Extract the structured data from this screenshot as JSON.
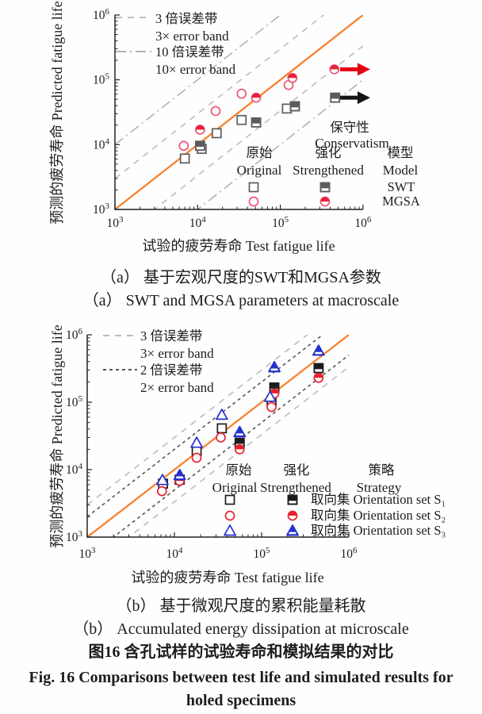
{
  "figure": {
    "caption_a_cn": "（a） 基于宏观尺度的SWT和MGSA参数",
    "caption_a_en": "（a） SWT and MGSA parameters at macroscale",
    "caption_b_cn": "（b） 基于微观尺度的累积能量耗散",
    "caption_b_en": "（b） Accumulated energy dissipation at microscale",
    "fig_caption_cn": "图16  含孔试样的试验寿命和模拟结果的对比",
    "fig_caption_en": "Fig. 16  Comparisons between test life and simulated results for holed specimens"
  },
  "chart_data": [
    {
      "id": "a",
      "type": "scatter",
      "scale": "log-log",
      "xlabel": "试验的疲劳寿命 Test fatigue life",
      "ylabel": "预测的疲劳寿命 Predicted fatigue life",
      "xlim": [
        1000,
        1000000
      ],
      "ylim": [
        1000,
        1000000
      ],
      "x_ticks": [
        "10^3",
        "10^4",
        "10^5",
        "10^6"
      ],
      "y_ticks": [
        "10^3",
        "10^4",
        "10^5",
        "10^6"
      ],
      "identity_line": {
        "color": "#f8812f"
      },
      "error_bands": [
        {
          "factor": 3,
          "color": "#bcbcbc",
          "dash": "8 7",
          "label_cn": "3 倍误差带",
          "label_en": "3× error band"
        },
        {
          "factor": 10,
          "color": "#b3b3b3",
          "dash": "13 5 2 5",
          "label_cn": "10 倍误差带",
          "label_en": "10× error band"
        }
      ],
      "legend": {
        "col_original_cn": "原始",
        "col_original_en": "Original",
        "col_strengthened_cn": "强化",
        "col_strengthened_en": "Strengthened",
        "col_group_cn": "模型",
        "col_group_en": "Model",
        "rows": [
          "SWT",
          "MGSA"
        ]
      },
      "annotation_cn": "保守性",
      "annotation_en": "Conservatism",
      "arrows": [
        {
          "name": "mgsa-conservatism-arrow",
          "color": "#e60012"
        },
        {
          "name": "swt-conservatism-arrow",
          "color": "#141414"
        }
      ],
      "series": [
        {
          "name": "SWT Original",
          "marker": "square",
          "variant": "open",
          "color": "#5c5c5c",
          "points": [
            [
              7000,
              6100
            ],
            [
              11200,
              8600
            ],
            [
              17000,
              15000
            ],
            [
              34000,
              24000
            ],
            [
              120000,
              36000
            ]
          ]
        },
        {
          "name": "SWT Strengthened",
          "marker": "square",
          "variant": "half",
          "color": "#5c5c5c",
          "points": [
            [
              10700,
              9600
            ],
            [
              51000,
              22000
            ],
            [
              150000,
              39000
            ],
            [
              460000,
              53000
            ]
          ]
        },
        {
          "name": "MGSA Original",
          "marker": "circle",
          "variant": "open",
          "color": "#ee5577",
          "points": [
            [
              6800,
              9600
            ],
            [
              16500,
              33000
            ],
            [
              34000,
              61000
            ],
            [
              126000,
              83000
            ]
          ]
        },
        {
          "name": "MGSA Strengthened",
          "marker": "circle",
          "variant": "half",
          "color": "#e5243d",
          "stroke": "#ee5577",
          "points": [
            [
              10700,
              17000
            ],
            [
              51000,
              53000
            ],
            [
              140000,
              107000
            ],
            [
              450000,
              145000
            ]
          ]
        }
      ]
    },
    {
      "id": "b",
      "type": "scatter",
      "scale": "log-log",
      "xlabel": "试验的疲劳寿命 Test fatigue life",
      "ylabel": "预测的疲劳寿命 Predicted fatigue life",
      "xlim": [
        1000,
        1000000
      ],
      "ylim": [
        1000,
        1000000
      ],
      "x_ticks": [
        "10^3",
        "10^4",
        "10^5",
        "10^6"
      ],
      "y_ticks": [
        "10^3",
        "10^4",
        "10^5",
        "10^6"
      ],
      "identity_line": {
        "color": "#f8812f"
      },
      "error_bands": [
        {
          "factor": 3,
          "color": "#bcbcbc",
          "dash": "8 7",
          "label_cn": "3 倍误差带",
          "label_en": "3× error band"
        },
        {
          "factor": 2,
          "color": "#555555",
          "dash": "4 4",
          "label_cn": "2 倍误差带",
          "label_en": "2× error band"
        }
      ],
      "legend": {
        "col_original_cn": "原始",
        "col_original_en": "Original",
        "col_strengthened_cn": "强化",
        "col_strengthened_en": "Strengthened",
        "col_group_cn": "策略",
        "col_group_en": "Strategy",
        "rows": [
          "取向集 Orientation set S₁",
          "取向集 Orientation set S₂",
          "取向集 Orientation set S₃"
        ]
      },
      "series": [
        {
          "name": "S1 Original",
          "marker": "square",
          "variant": "open",
          "color": "#1c1c1c",
          "points": [
            [
              7400,
              6200
            ],
            [
              18000,
              19000
            ],
            [
              35000,
              41000
            ],
            [
              130000,
              105000
            ]
          ]
        },
        {
          "name": "S1 Strengthened",
          "marker": "square",
          "variant": "half",
          "color": "#1c1c1c",
          "points": [
            [
              11500,
              7100
            ],
            [
              56000,
              25000
            ],
            [
              140000,
              165000
            ],
            [
              450000,
              320000
            ]
          ]
        },
        {
          "name": "S2 Original",
          "marker": "circle",
          "variant": "open",
          "color": "#e8212e",
          "points": [
            [
              7200,
              4800
            ],
            [
              18000,
              15000
            ],
            [
              34000,
              30000
            ],
            [
              130000,
              85000
            ]
          ]
        },
        {
          "name": "S2 Strengthened",
          "marker": "circle",
          "variant": "half",
          "color": "#e8212e",
          "points": [
            [
              11500,
              6800
            ],
            [
              56000,
              20000
            ],
            [
              140000,
              135000
            ],
            [
              450000,
              230000
            ]
          ]
        },
        {
          "name": "S3 Original",
          "marker": "triangle",
          "variant": "open",
          "color": "#2431cf",
          "points": [
            [
              7300,
              7000
            ],
            [
              18000,
              25000
            ],
            [
              35000,
              65000
            ],
            [
              125000,
              120000
            ]
          ]
        },
        {
          "name": "S3 Strengthened",
          "marker": "triangle",
          "variant": "half",
          "color": "#2431cf",
          "points": [
            [
              11500,
              8300
            ],
            [
              56000,
              36000
            ],
            [
              140000,
              330000
            ],
            [
              450000,
              580000
            ]
          ]
        }
      ]
    }
  ]
}
